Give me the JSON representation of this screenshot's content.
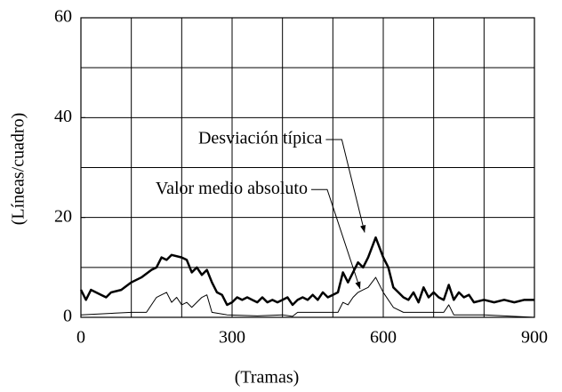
{
  "chart_data": {
    "type": "line",
    "xlabel": "(Tramas)",
    "ylabel": "(Líneas/cuadro)",
    "xlim": [
      0,
      900
    ],
    "ylim": [
      0,
      60
    ],
    "xticks": [
      0,
      300,
      600,
      900
    ],
    "yticks": [
      0,
      20,
      40,
      60
    ],
    "xgrid": [
      100,
      200,
      300,
      400,
      500,
      600,
      700,
      800
    ],
    "ygrid": [
      10,
      20,
      30,
      40,
      50
    ],
    "grid": true,
    "series": [
      {
        "name": "Desviación típica",
        "color": "#000000",
        "linewidth": 2.5,
        "x": [
          0,
          10,
          20,
          40,
          50,
          60,
          80,
          100,
          120,
          140,
          150,
          160,
          170,
          180,
          200,
          210,
          220,
          230,
          240,
          250,
          260,
          270,
          280,
          290,
          300,
          310,
          320,
          330,
          340,
          350,
          360,
          370,
          380,
          390,
          400,
          410,
          420,
          430,
          440,
          450,
          460,
          470,
          480,
          490,
          500,
          510,
          520,
          530,
          540,
          550,
          560,
          570,
          585,
          600,
          610,
          620,
          630,
          640,
          650,
          660,
          670,
          680,
          690,
          700,
          710,
          720,
          730,
          740,
          750,
          760,
          770,
          780,
          800,
          820,
          840,
          860,
          880,
          900
        ],
        "values": [
          5.5,
          3.5,
          5.5,
          4.5,
          4,
          5,
          5.5,
          7,
          8,
          9.5,
          10,
          12,
          11.5,
          12.5,
          12,
          11.5,
          9,
          10,
          8.5,
          9.5,
          7,
          5,
          4.5,
          2.5,
          3,
          4,
          3.5,
          4,
          3.5,
          3,
          4,
          3,
          3.5,
          3,
          3.5,
          4,
          2.5,
          3.5,
          4,
          3.5,
          4.5,
          3.5,
          5,
          4,
          4.5,
          5,
          9,
          7,
          9,
          11,
          10,
          12,
          16,
          12,
          10,
          6,
          5,
          4,
          3.5,
          5,
          3,
          6,
          4,
          5,
          4,
          3.5,
          6.5,
          3.5,
          5,
          4,
          4.5,
          3,
          3.5,
          3,
          3.5,
          3,
          3.5,
          3.5
        ]
      },
      {
        "name": "Valor medio absoluto",
        "color": "#000000",
        "linewidth": 1,
        "x": [
          0,
          100,
          130,
          150,
          160,
          170,
          180,
          190,
          200,
          210,
          220,
          230,
          240,
          250,
          260,
          290,
          350,
          400,
          420,
          430,
          510,
          520,
          530,
          540,
          550,
          560,
          570,
          585,
          600,
          620,
          640,
          700,
          720,
          730,
          740,
          800,
          900
        ],
        "values": [
          0.5,
          1,
          1,
          4,
          4.5,
          5,
          3,
          4,
          2.5,
          3,
          2,
          3,
          4,
          4.5,
          1,
          0.5,
          0.3,
          0.5,
          0.2,
          1,
          1,
          3,
          2.5,
          4,
          5,
          5.5,
          6,
          8,
          5,
          2,
          1,
          1,
          1,
          2.5,
          0.5,
          0.5,
          0
        ]
      }
    ],
    "annotations": [
      {
        "text": "Desviación típica",
        "xy": [
          563,
          17
        ],
        "xytext": [
          486,
          35.6
        ]
      },
      {
        "text": "Valor medio absoluto",
        "xy": [
          554,
          5.7
        ],
        "xytext": [
          457,
          25.6
        ]
      }
    ]
  }
}
